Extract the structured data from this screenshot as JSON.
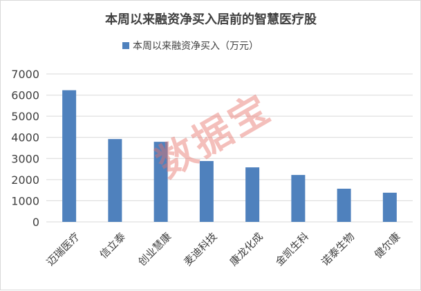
{
  "chart_data": {
    "type": "bar",
    "title": "本周以来融资净买入居前的智慧医疗股",
    "legend_position": "top",
    "grid": true,
    "ylim": [
      0,
      7000
    ],
    "yticks": [
      0,
      1000,
      2000,
      3000,
      4000,
      5000,
      6000,
      7000
    ],
    "categories": [
      "迈瑞医疗",
      "信立泰",
      "创业慧康",
      "麦迪科技",
      "康龙化成",
      "金凯生科",
      "诺泰生物",
      "健尔康"
    ],
    "series": [
      {
        "name": "本周以来融资净买入（万元）",
        "color": "#4f81bd",
        "values": [
          6230,
          3920,
          3790,
          2880,
          2580,
          2220,
          1570,
          1380
        ]
      }
    ],
    "watermark": "数据宝",
    "colors": {
      "bar": "#4f81bd",
      "grid": "#d9d9d9",
      "watermark": "#e8736b"
    }
  }
}
